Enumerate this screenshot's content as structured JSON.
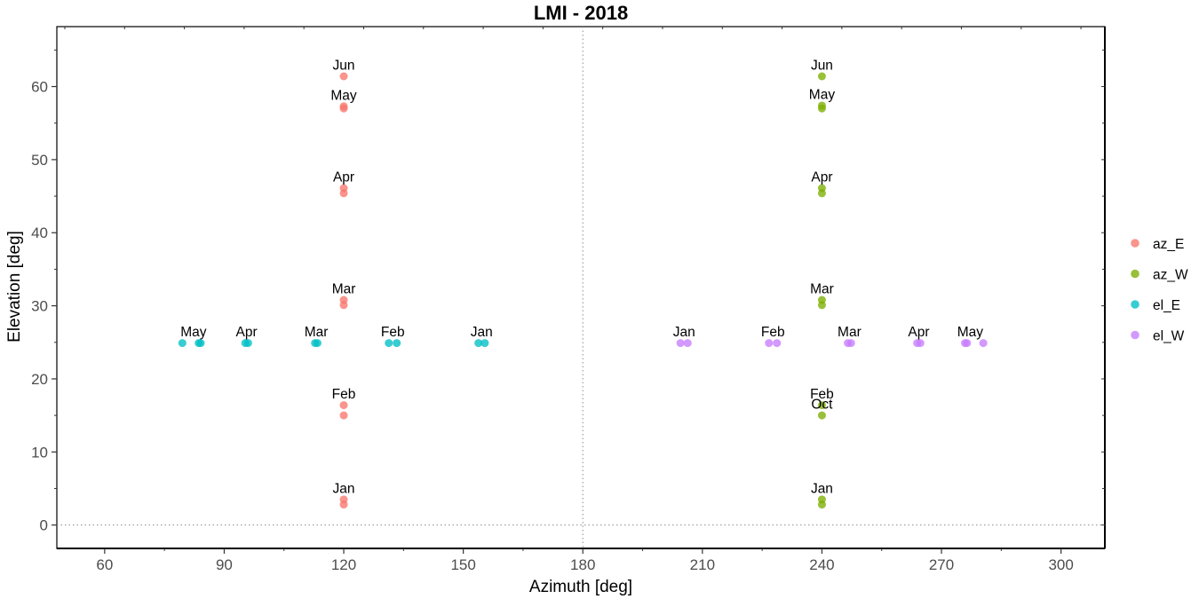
{
  "chart_data": {
    "type": "scatter",
    "title": "LMI - 2018",
    "xlabel": "Azimuth [deg]",
    "ylabel": "Elevation [deg]",
    "xlim": [
      48,
      311
    ],
    "ylim": [
      -3.2,
      68.2
    ],
    "x_ticks": [
      60,
      90,
      120,
      150,
      180,
      210,
      240,
      270,
      300
    ],
    "y_ticks": [
      0,
      10,
      20,
      30,
      40,
      50,
      60
    ],
    "reference_lines": {
      "vertical_x": 180,
      "horizontal_y": 0,
      "style": "dotted"
    },
    "grid": false,
    "legend_position": "right",
    "series": [
      {
        "name": "az_E",
        "color": "#F8766D",
        "points": [
          {
            "x": 120,
            "y": 2.8
          },
          {
            "x": 120,
            "y": 3.5
          },
          {
            "x": 120,
            "y": 15.0
          },
          {
            "x": 120,
            "y": 16.4
          },
          {
            "x": 120,
            "y": 30.1
          },
          {
            "x": 120,
            "y": 30.8
          },
          {
            "x": 120,
            "y": 45.4
          },
          {
            "x": 120,
            "y": 46.1
          },
          {
            "x": 120,
            "y": 57.0
          },
          {
            "x": 120,
            "y": 57.3
          },
          {
            "x": 120,
            "y": 61.4
          }
        ]
      },
      {
        "name": "az_W",
        "color": "#7CAE00",
        "points": [
          {
            "x": 240,
            "y": 2.8
          },
          {
            "x": 240,
            "y": 3.5
          },
          {
            "x": 240,
            "y": 15.0
          },
          {
            "x": 240,
            "y": 16.4
          },
          {
            "x": 240,
            "y": 30.1
          },
          {
            "x": 240,
            "y": 30.8
          },
          {
            "x": 240,
            "y": 45.4
          },
          {
            "x": 240,
            "y": 46.1
          },
          {
            "x": 240,
            "y": 57.0
          },
          {
            "x": 240,
            "y": 57.4
          },
          {
            "x": 240,
            "y": 61.4
          }
        ]
      },
      {
        "name": "el_E",
        "color": "#00BFC4",
        "points": [
          {
            "x": 79.5,
            "y": 24.9
          },
          {
            "x": 83.6,
            "y": 24.9
          },
          {
            "x": 84.1,
            "y": 24.9
          },
          {
            "x": 95.3,
            "y": 24.9
          },
          {
            "x": 96.0,
            "y": 24.9
          },
          {
            "x": 112.8,
            "y": 24.9
          },
          {
            "x": 113.4,
            "y": 24.9
          },
          {
            "x": 131.3,
            "y": 24.9
          },
          {
            "x": 133.3,
            "y": 24.9
          },
          {
            "x": 153.8,
            "y": 24.9
          },
          {
            "x": 155.4,
            "y": 24.9
          }
        ]
      },
      {
        "name": "el_W",
        "color": "#C77CFF",
        "points": [
          {
            "x": 204.5,
            "y": 24.9
          },
          {
            "x": 206.3,
            "y": 24.9
          },
          {
            "x": 226.7,
            "y": 24.9
          },
          {
            "x": 228.7,
            "y": 24.9
          },
          {
            "x": 246.5,
            "y": 24.9
          },
          {
            "x": 247.3,
            "y": 24.9
          },
          {
            "x": 263.9,
            "y": 24.9
          },
          {
            "x": 264.7,
            "y": 24.9
          },
          {
            "x": 275.9,
            "y": 24.9
          },
          {
            "x": 276.4,
            "y": 24.9
          },
          {
            "x": 280.5,
            "y": 24.9
          }
        ]
      }
    ],
    "annotations": [
      {
        "text": "Jan",
        "x": 120,
        "y": 4.4
      },
      {
        "text": "Feb",
        "x": 120,
        "y": 17.3
      },
      {
        "text": "Mar",
        "x": 120,
        "y": 31.7
      },
      {
        "text": "Apr",
        "x": 120,
        "y": 47.0
      },
      {
        "text": "May",
        "x": 120,
        "y": 58.2
      },
      {
        "text": "Jun",
        "x": 120,
        "y": 62.3
      },
      {
        "text": "Jan",
        "x": 240,
        "y": 4.4
      },
      {
        "text": "Feb",
        "x": 240,
        "y": 17.3
      },
      {
        "text": "Oct",
        "x": 240,
        "y": 15.9
      },
      {
        "text": "Mar",
        "x": 240,
        "y": 31.7
      },
      {
        "text": "Apr",
        "x": 240,
        "y": 47.0
      },
      {
        "text": "May",
        "x": 240,
        "y": 58.3
      },
      {
        "text": "Jun",
        "x": 240,
        "y": 62.3
      },
      {
        "text": "May",
        "x": 82.3,
        "y": 25.8
      },
      {
        "text": "Apr",
        "x": 95.6,
        "y": 25.8
      },
      {
        "text": "Mar",
        "x": 113.1,
        "y": 25.8
      },
      {
        "text": "Feb",
        "x": 132.3,
        "y": 25.8
      },
      {
        "text": "Jan",
        "x": 154.6,
        "y": 25.8
      },
      {
        "text": "Jan",
        "x": 205.4,
        "y": 25.8
      },
      {
        "text": "Feb",
        "x": 227.7,
        "y": 25.8
      },
      {
        "text": "Mar",
        "x": 246.9,
        "y": 25.8
      },
      {
        "text": "Apr",
        "x": 264.3,
        "y": 25.8
      },
      {
        "text": "May",
        "x": 277.2,
        "y": 25.8
      }
    ]
  }
}
